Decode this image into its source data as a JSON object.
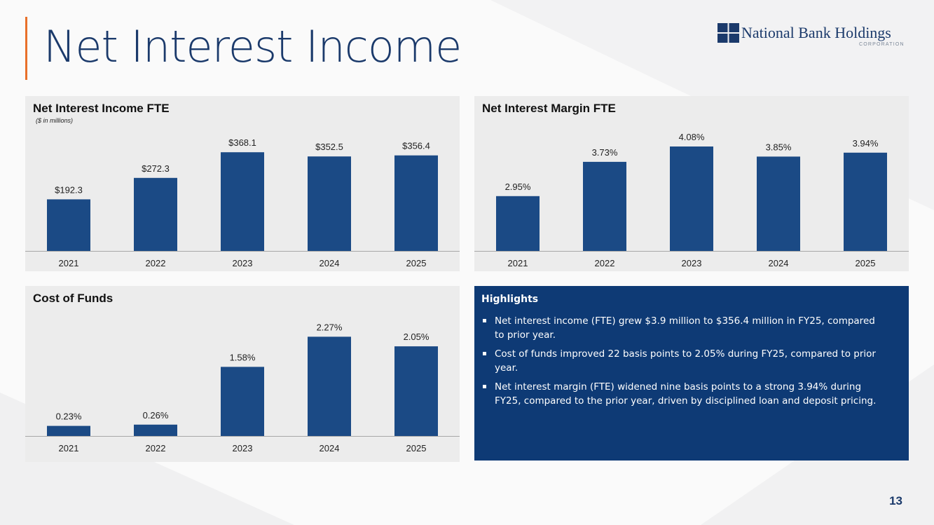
{
  "slide": {
    "title": "Net Interest Income",
    "page_number": "13"
  },
  "logo": {
    "name": "National Bank Holdings",
    "sub": "CORPORATION"
  },
  "colors": {
    "bar": "#1b4a85",
    "accent": "#e8702a",
    "title": "#1b3a6b",
    "highlights_bg": "#0e3a75"
  },
  "chart_data": [
    {
      "type": "bar",
      "title": "Net Interest Income FTE",
      "subtitle": "($ in millions)",
      "categories": [
        "2021",
        "2022",
        "2023",
        "2024",
        "2025"
      ],
      "values": [
        192.3,
        272.3,
        368.1,
        352.5,
        356.4
      ],
      "data_labels": [
        "$192.3",
        "$272.3",
        "$368.1",
        "$352.5",
        "$356.4"
      ],
      "ylim": [
        0,
        400
      ],
      "grid": false,
      "legend": "none"
    },
    {
      "type": "bar",
      "title": "Net Interest Margin FTE",
      "categories": [
        "2021",
        "2022",
        "2023",
        "2024",
        "2025"
      ],
      "values": [
        2.95,
        3.73,
        4.08,
        3.85,
        3.94
      ],
      "data_labels": [
        "2.95%",
        "3.73%",
        "4.08%",
        "3.85%",
        "3.94%"
      ],
      "ylim": [
        1.7,
        4.4
      ],
      "grid": false,
      "legend": "none"
    },
    {
      "type": "bar",
      "title": "Cost of Funds",
      "categories": [
        "2021",
        "2022",
        "2023",
        "2024",
        "2025"
      ],
      "values": [
        0.23,
        0.26,
        1.58,
        2.27,
        2.05
      ],
      "data_labels": [
        "0.23%",
        "0.26%",
        "1.58%",
        "2.27%",
        "2.05%"
      ],
      "ylim": [
        0,
        2.5
      ],
      "grid": false,
      "legend": "none"
    }
  ],
  "highlights": {
    "title": "Highlights",
    "items": [
      "Net interest income (FTE) grew $3.9 million to $356.4 million in FY25, compared to prior year.",
      "Cost of funds improved 22 basis points to 2.05% during FY25, compared to prior year.",
      "Net interest margin (FTE) widened nine basis points to a strong 3.94% during FY25, compared to the prior year, driven by disciplined loan and deposit pricing."
    ]
  }
}
